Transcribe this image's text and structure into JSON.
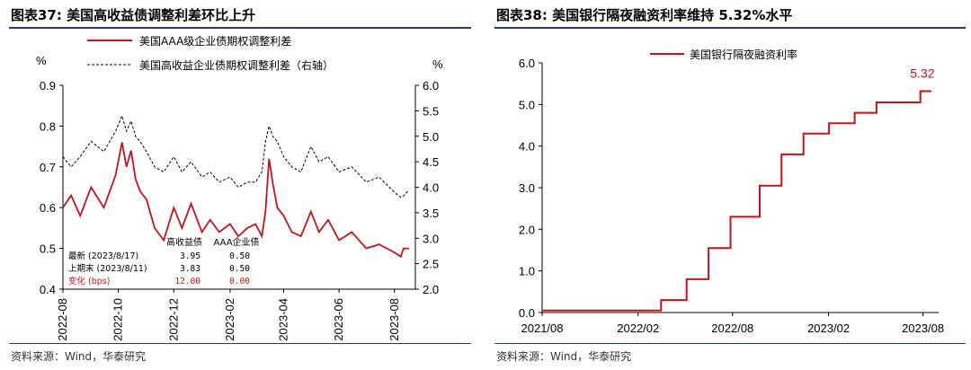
{
  "left": {
    "title": "图表37:  美国高收益债调整利差环比上升",
    "source": "资料来源：Wind，华泰研究",
    "chart_data": {
      "type": "line",
      "ylabel_left": "%",
      "ylabel_right": "%",
      "ylim_left": [
        0.4,
        0.9
      ],
      "ylim_right": [
        2.0,
        6.0
      ],
      "yticks_left": [
        "0.4",
        "0.5",
        "0.6",
        "0.7",
        "0.8",
        "0.9"
      ],
      "yticks_right": [
        "2.0",
        "2.5",
        "3.0",
        "3.5",
        "4.0",
        "4.5",
        "5.0",
        "5.5",
        "6.0"
      ],
      "xticks": [
        "2022-08",
        "2022-10",
        "2022-12",
        "2023-02",
        "2023-04",
        "2023-06",
        "2023-08"
      ],
      "legend_placement": "top",
      "series": [
        {
          "name": "美国AAA级企业债期权调整利差",
          "axis": "left",
          "color": "#c0161b",
          "x": [
            "2022-08-01",
            "2022-08-10",
            "2022-08-20",
            "2022-09-01",
            "2022-09-15",
            "2022-09-28",
            "2022-10-05",
            "2022-10-10",
            "2022-10-15",
            "2022-10-20",
            "2022-10-25",
            "2022-11-01",
            "2022-11-10",
            "2022-11-20",
            "2022-12-01",
            "2022-12-10",
            "2022-12-20",
            "2023-01-01",
            "2023-01-10",
            "2023-01-20",
            "2023-02-01",
            "2023-02-10",
            "2023-02-20",
            "2023-03-01",
            "2023-03-08",
            "2023-03-12",
            "2023-03-16",
            "2023-03-20",
            "2023-03-25",
            "2023-04-01",
            "2023-04-10",
            "2023-04-20",
            "2023-05-01",
            "2023-05-10",
            "2023-05-20",
            "2023-06-01",
            "2023-06-15",
            "2023-07-01",
            "2023-07-15",
            "2023-08-01",
            "2023-08-08",
            "2023-08-11",
            "2023-08-17"
          ],
          "y": [
            0.6,
            0.63,
            0.58,
            0.65,
            0.6,
            0.68,
            0.76,
            0.7,
            0.74,
            0.67,
            0.64,
            0.62,
            0.55,
            0.52,
            0.6,
            0.55,
            0.61,
            0.54,
            0.57,
            0.54,
            0.56,
            0.53,
            0.55,
            0.56,
            0.53,
            0.59,
            0.72,
            0.66,
            0.6,
            0.58,
            0.54,
            0.53,
            0.59,
            0.54,
            0.57,
            0.52,
            0.54,
            0.5,
            0.51,
            0.49,
            0.48,
            0.5,
            0.5
          ]
        },
        {
          "name": "美国高收益企业债期权调整利差（右轴）",
          "axis": "right",
          "color": "#000000",
          "dash": true,
          "x": [
            "2022-08-01",
            "2022-08-10",
            "2022-08-20",
            "2022-09-01",
            "2022-09-15",
            "2022-09-28",
            "2022-10-05",
            "2022-10-10",
            "2022-10-15",
            "2022-10-20",
            "2022-10-25",
            "2022-11-01",
            "2022-11-10",
            "2022-11-20",
            "2022-12-01",
            "2022-12-10",
            "2022-12-20",
            "2023-01-01",
            "2023-01-10",
            "2023-01-20",
            "2023-02-01",
            "2023-02-10",
            "2023-02-20",
            "2023-03-01",
            "2023-03-08",
            "2023-03-12",
            "2023-03-16",
            "2023-03-20",
            "2023-03-25",
            "2023-04-01",
            "2023-04-10",
            "2023-04-20",
            "2023-05-01",
            "2023-05-10",
            "2023-05-20",
            "2023-06-01",
            "2023-06-15",
            "2023-07-01",
            "2023-07-15",
            "2023-08-01",
            "2023-08-08",
            "2023-08-11",
            "2023-08-17"
          ],
          "y": [
            4.6,
            4.4,
            4.6,
            4.9,
            4.7,
            5.1,
            5.4,
            5.1,
            5.3,
            5.0,
            4.9,
            4.7,
            4.4,
            4.3,
            4.6,
            4.3,
            4.5,
            4.2,
            4.3,
            4.1,
            4.2,
            4.0,
            4.1,
            4.1,
            4.3,
            4.9,
            5.2,
            5.0,
            4.9,
            4.6,
            4.4,
            4.3,
            4.8,
            4.5,
            4.6,
            4.3,
            4.4,
            4.1,
            4.2,
            3.9,
            3.8,
            3.83,
            3.95
          ]
        }
      ],
      "annotation_table": {
        "headers": [
          "",
          "高收益债",
          "AAA企业债"
        ],
        "rows": [
          [
            "最新 (2023/8/17)",
            "3.95",
            "0.50"
          ],
          [
            "上期末 (2023/8/11)",
            "3.83",
            "0.50"
          ],
          [
            "变化 (bps)",
            "12.00",
            "0.00"
          ]
        ],
        "highlight_color": "#c0161b"
      }
    }
  },
  "right": {
    "title": "图表38:  美国银行隔夜融资利率维持 5.32%水平",
    "source": "资料来源：Wind，华泰研究",
    "chart_data": {
      "type": "line",
      "step": true,
      "ylim": [
        0.0,
        6.0
      ],
      "yticks": [
        "0.0",
        "1.0",
        "2.0",
        "3.0",
        "4.0",
        "5.0",
        "6.0"
      ],
      "xticks": [
        "2021/08",
        "2022/02",
        "2022/08",
        "2023/02",
        "2023/08"
      ],
      "legend_placement": "top",
      "series": [
        {
          "name": "美国银行隔夜融资利率",
          "color": "#c0161b",
          "x": [
            "2021-08-01",
            "2022-03-17",
            "2022-05-05",
            "2022-06-16",
            "2022-07-28",
            "2022-09-22",
            "2022-11-03",
            "2022-12-15",
            "2023-02-02",
            "2023-03-23",
            "2023-05-04",
            "2023-07-27",
            "2023-08-17"
          ],
          "y": [
            0.05,
            0.3,
            0.8,
            1.55,
            2.3,
            3.05,
            3.8,
            4.3,
            4.55,
            4.8,
            5.05,
            5.32,
            5.32
          ]
        }
      ],
      "last_value_label": "5.32"
    }
  }
}
